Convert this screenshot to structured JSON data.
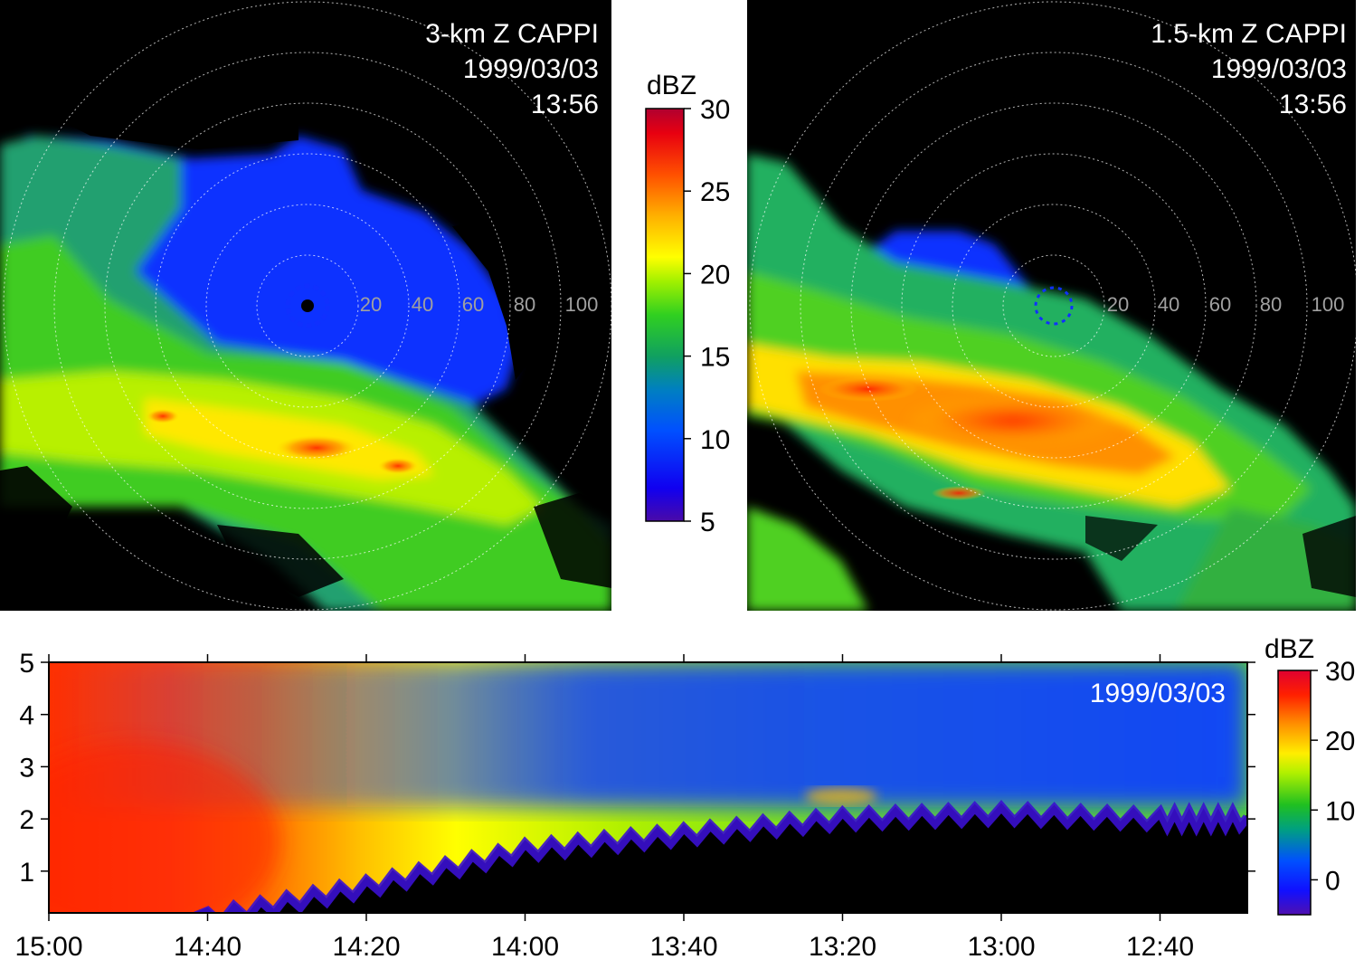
{
  "chart_data": [
    {
      "type": "heatmap",
      "subtype": "radar-ppi",
      "title_lines": [
        "3-km Z CAPPI",
        "1999/03/03",
        "13:56"
      ],
      "range_ring_labels": [
        "20",
        "40",
        "60",
        "80",
        "100"
      ],
      "background": "#000000",
      "ring_style": "dotted white",
      "colorbar_ref": "colorbar_top"
    },
    {
      "type": "heatmap",
      "subtype": "radar-ppi",
      "title_lines": [
        "1.5-km Z CAPPI",
        "1999/03/03",
        "13:56"
      ],
      "range_ring_labels": [
        "20",
        "40",
        "60",
        "80",
        "100"
      ],
      "background": "#000000",
      "ring_style": "dotted white",
      "colorbar_ref": "colorbar_top"
    },
    {
      "type": "heatmap",
      "subtype": "time-height",
      "annotation": "1999/03/03",
      "x": {
        "reversed": true,
        "ticklabels": [
          "15:00",
          "14:40",
          "14:20",
          "14:00",
          "13:40",
          "13:20",
          "13:00",
          "12:40"
        ],
        "range": [
          "15:00",
          "12:29"
        ]
      },
      "y": {
        "ticklabels": [
          "1",
          "2",
          "3",
          "4",
          "5"
        ],
        "range": [
          0.2,
          5
        ]
      },
      "profile": {
        "echo_top_time": [
          "15:00",
          "14:40",
          "14:20",
          "14:00",
          "13:40",
          "13:20",
          "13:00",
          "12:40"
        ],
        "echo_base_height_km": [
          0.2,
          0.2,
          0.8,
          1.5,
          1.8,
          2.1,
          2.2,
          2.1
        ]
      },
      "colorbar_ref": "colorbar_bottom"
    }
  ],
  "colorbar_top": {
    "label": "dBZ",
    "min": 5,
    "max": 30,
    "ticks": [
      "5",
      "10",
      "15",
      "20",
      "25",
      "30"
    ]
  },
  "colorbar_bottom": {
    "label": "dBZ",
    "min": -5,
    "max": 30,
    "ticks": [
      "0",
      "10",
      "20",
      "30"
    ]
  },
  "colors": {
    "scale": [
      "#4a0aa8",
      "#0000ff",
      "#0070d0",
      "#00a070",
      "#20c020",
      "#60e010",
      "#c8f000",
      "#ffff00",
      "#ffc000",
      "#ff8000",
      "#ff3000",
      "#e00020",
      "#b00030"
    ],
    "panel_background": "#000000",
    "label_text": "#ffffff",
    "ring_label_text": "#a0a0a0"
  }
}
